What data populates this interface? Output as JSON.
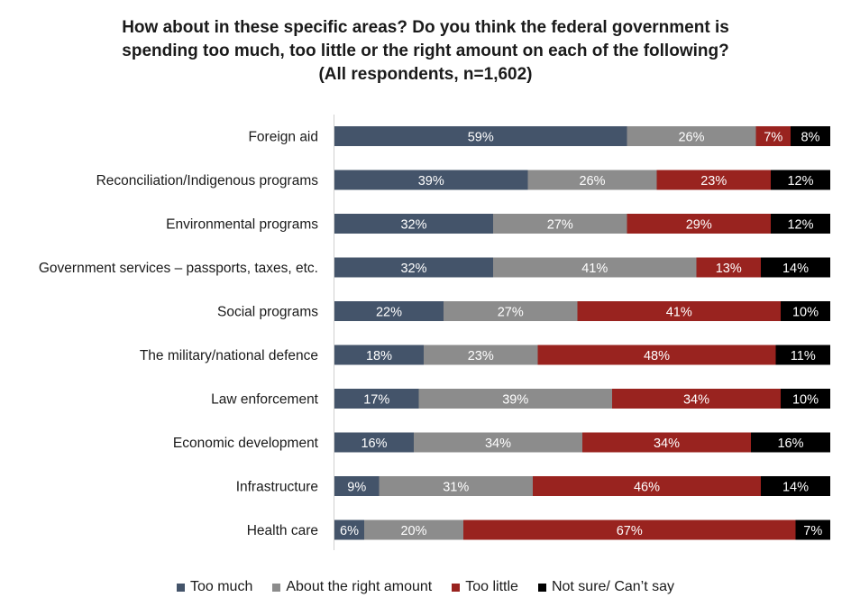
{
  "chart_data": {
    "type": "bar",
    "orientation": "horizontal",
    "stacked": true,
    "title_lines": [
      "How about in these specific areas? Do you think the federal government is",
      "spending too much, too little or the right amount on each of the following?",
      "(All respondents,  n=1,602)"
    ],
    "xlim": [
      0,
      100
    ],
    "value_suffix": "%",
    "categories": [
      "Foreign aid",
      "Reconciliation/Indigenous programs",
      "Environmental programs",
      "Government services – passports, taxes, etc.",
      "Social programs",
      "The military/national defence",
      "Law enforcement",
      "Economic development",
      "Infrastructure",
      "Health care"
    ],
    "series": [
      {
        "name": "Too much",
        "color": "#44546a",
        "values": [
          59,
          39,
          32,
          32,
          22,
          18,
          17,
          16,
          9,
          6
        ]
      },
      {
        "name": "About the right amount",
        "color": "#8c8c8c",
        "values": [
          26,
          26,
          27,
          41,
          27,
          23,
          39,
          34,
          31,
          20
        ]
      },
      {
        "name": "Too little",
        "color": "#99231f",
        "values": [
          7,
          23,
          29,
          13,
          41,
          48,
          34,
          34,
          46,
          67
        ]
      },
      {
        "name": "Not sure/ Can’t say",
        "color": "#000000",
        "values": [
          8,
          12,
          12,
          14,
          10,
          11,
          10,
          16,
          14,
          7
        ]
      }
    ],
    "legend_position": "bottom",
    "grid": false
  }
}
